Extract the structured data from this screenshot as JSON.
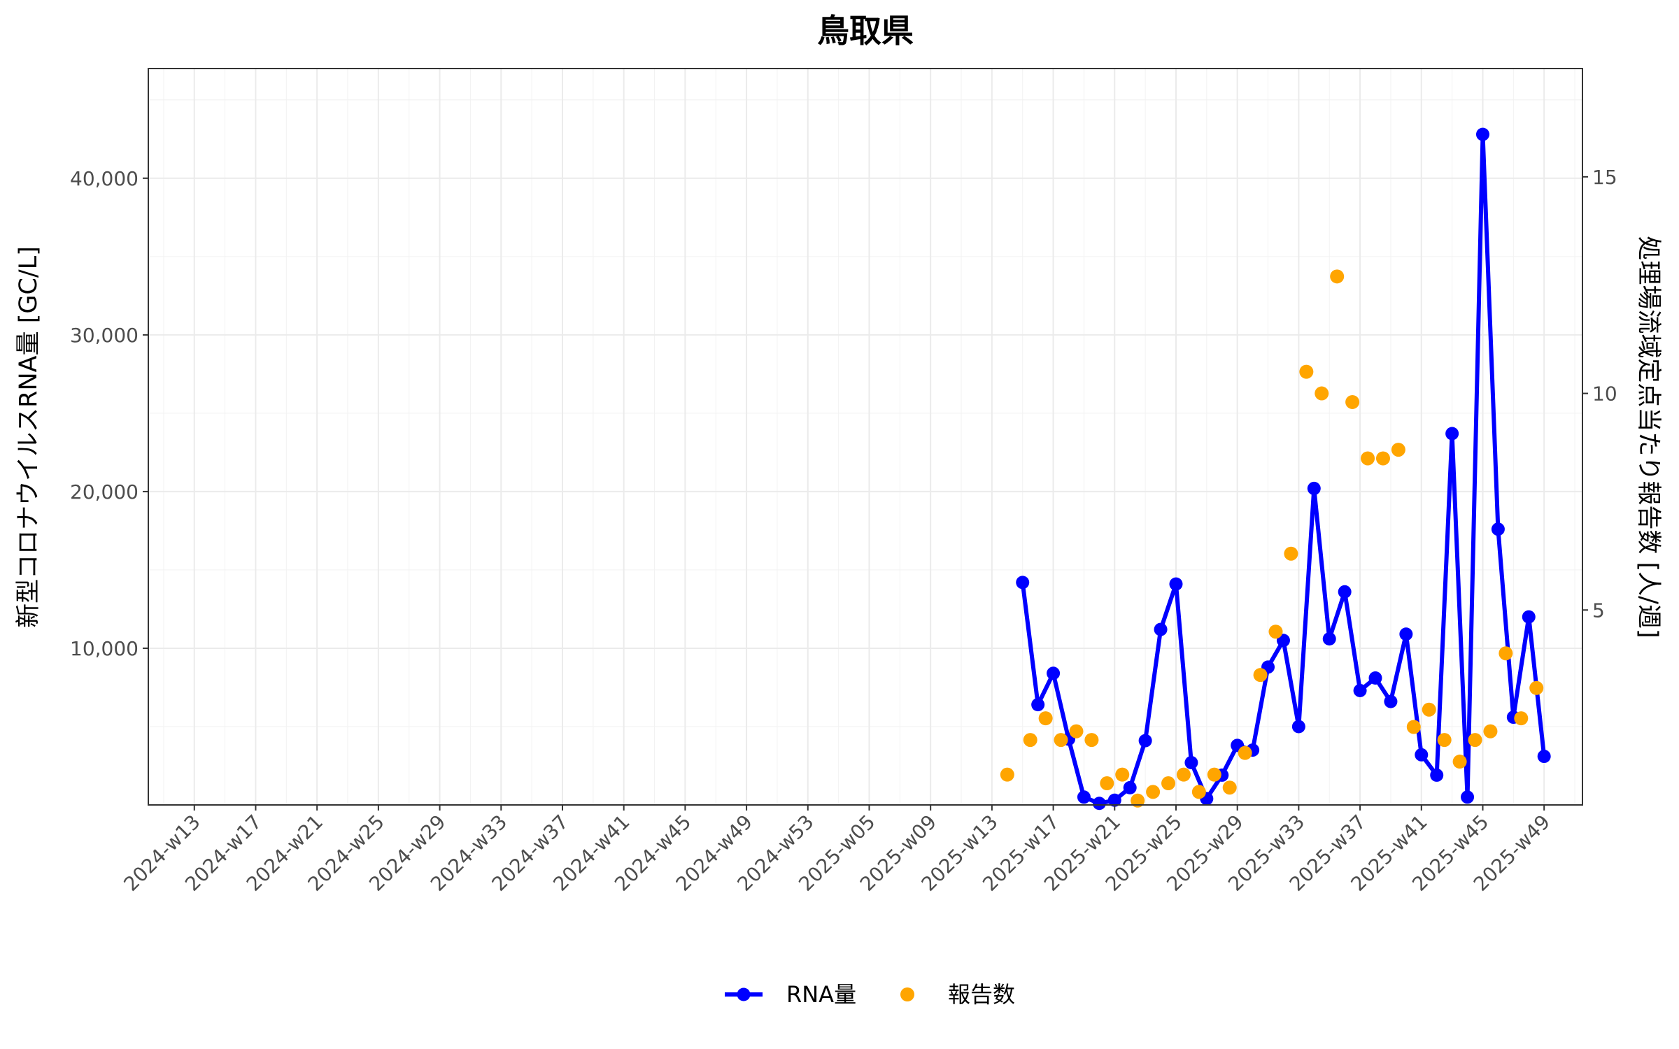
{
  "chart_data": {
    "type": "line",
    "title": "鳥取県",
    "ylabel": "新型コロナウイルスRNA量 [GC/L]",
    "y2label": "処理場流域定点当たり報告数 [人/週]",
    "ylim": [
      0,
      47000
    ],
    "y2lim": [
      0.5,
      17.5
    ],
    "yticks": [
      10000,
      20000,
      30000,
      40000
    ],
    "ytick_labels": [
      "10,000",
      "20,000",
      "30,000",
      "40,000"
    ],
    "y2ticks": [
      5,
      10,
      15
    ],
    "y2tick_labels": [
      "5",
      "10",
      "15"
    ],
    "x_range": [
      0,
      93.5
    ],
    "xticks": [
      3,
      7,
      11,
      15,
      19,
      23,
      27,
      31,
      35,
      39,
      43,
      47,
      51,
      55,
      59,
      63,
      67,
      71,
      75,
      79,
      83,
      87,
      91
    ],
    "xtick_labels": [
      "2024-w13",
      "2024-w17",
      "2024-w21",
      "2024-w25",
      "2024-w29",
      "2024-w33",
      "2024-w37",
      "2024-w41",
      "2024-w45",
      "2024-w49",
      "2024-w53",
      "2025-w05",
      "2025-w09",
      "2025-w13",
      "2025-w17",
      "2025-w21",
      "2025-w25",
      "2025-w29",
      "2025-w33",
      "2025-w37",
      "2025-w41",
      "2025-w45",
      "2025-w49"
    ],
    "grid": true,
    "legend_position": "bottom",
    "series": [
      {
        "name": "RNA量",
        "axis": "left",
        "type": "line+markers",
        "color": "#0000ff",
        "points": [
          [
            57,
            14200
          ],
          [
            58,
            6400
          ],
          [
            59,
            8400
          ],
          [
            60,
            4200
          ],
          [
            61,
            500
          ],
          [
            62,
            100
          ],
          [
            63,
            300
          ],
          [
            64,
            1100
          ],
          [
            65,
            4100
          ],
          [
            66,
            11200
          ],
          [
            67,
            14100
          ],
          [
            68,
            2700
          ],
          [
            69,
            400
          ],
          [
            70,
            1900
          ],
          [
            71,
            3800
          ],
          [
            72,
            3500
          ],
          [
            73,
            8800
          ],
          [
            74,
            10500
          ],
          [
            75,
            5000
          ],
          [
            76,
            20200
          ],
          [
            77,
            10600
          ],
          [
            78,
            13600
          ],
          [
            79,
            7300
          ],
          [
            80,
            8100
          ],
          [
            81,
            6600
          ],
          [
            82,
            10900
          ],
          [
            83,
            3200
          ],
          [
            84,
            1900
          ],
          [
            85,
            23700
          ],
          [
            86,
            500
          ],
          [
            87,
            42800
          ],
          [
            88,
            17600
          ],
          [
            89,
            5600
          ],
          [
            90,
            12000
          ],
          [
            91,
            3100
          ]
        ]
      },
      {
        "name": "報告数",
        "axis": "right",
        "type": "scatter",
        "color": "#ffa500",
        "points": [
          [
            56,
            1.2
          ],
          [
            57.5,
            2.0
          ],
          [
            58.5,
            2.5
          ],
          [
            59.5,
            2.0
          ],
          [
            60.5,
            2.2
          ],
          [
            61.5,
            2.0
          ],
          [
            62.5,
            1.0
          ],
          [
            63.5,
            1.2
          ],
          [
            64.5,
            0.6
          ],
          [
            65.5,
            0.8
          ],
          [
            66.5,
            1.0
          ],
          [
            67.5,
            1.2
          ],
          [
            68.5,
            0.8
          ],
          [
            69.5,
            1.2
          ],
          [
            70.5,
            0.9
          ],
          [
            71.5,
            1.7
          ],
          [
            72.5,
            3.5
          ],
          [
            73.5,
            4.5
          ],
          [
            74.5,
            6.3
          ],
          [
            75.5,
            10.5
          ],
          [
            76.5,
            10.0
          ],
          [
            77.5,
            12.7
          ],
          [
            78.5,
            9.8
          ],
          [
            79.5,
            8.5
          ],
          [
            80.5,
            8.5
          ],
          [
            81.5,
            8.7
          ],
          [
            82.5,
            2.3
          ],
          [
            83.5,
            2.7
          ],
          [
            84.5,
            2.0
          ],
          [
            85.5,
            1.5
          ],
          [
            86.5,
            2.0
          ],
          [
            87.5,
            2.2
          ],
          [
            88.5,
            4.0
          ],
          [
            89.5,
            2.5
          ],
          [
            90.5,
            3.2
          ]
        ]
      }
    ]
  }
}
